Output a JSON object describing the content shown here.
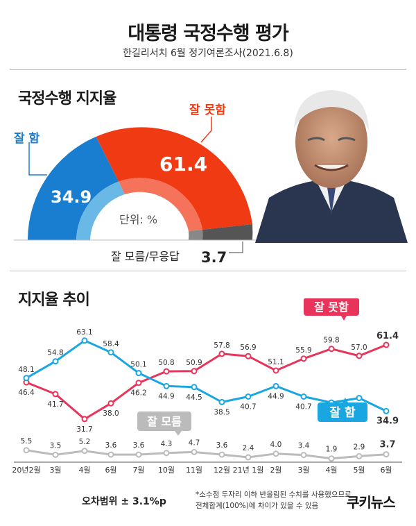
{
  "header": {
    "title": "대통령 국정수행 평가",
    "subtitle": "한길리서치 6월 정기여론조사(2021.6.8)"
  },
  "donut": {
    "section_title": "국정수행 지지율",
    "good_label": "잘 함",
    "good_value": "34.9",
    "bad_label": "잘 못함",
    "bad_value": "61.4",
    "unknown_label": "잘 모름/무응답",
    "unknown_value": "3.7",
    "unit_label": "단위: %",
    "colors": {
      "good": "#1a7ed0",
      "good_inner": "#6ab8e6",
      "bad": "#f03a14",
      "bad_inner": "#f5735a",
      "unknown": "#555555"
    }
  },
  "trend": {
    "section_title": "지지율 추이",
    "bad_tag": "잘 못함",
    "good_tag": "잘 함",
    "unknown_tag": "잘 모름",
    "colors": {
      "bad": "#e8335a",
      "good": "#1aa6e0",
      "unknown": "#bbbbbb"
    }
  },
  "chart_data": {
    "type": "line",
    "x": [
      "20년2월",
      "3월",
      "4월",
      "6월",
      "7월",
      "10월",
      "11월",
      "12월",
      "21년 1월",
      "2월",
      "3월",
      "4월",
      "5월",
      "6월"
    ],
    "series": [
      {
        "name": "잘 못함",
        "values": [
          46.4,
          41.7,
          31.7,
          38.0,
          46.2,
          50.8,
          50.9,
          57.8,
          56.9,
          51.1,
          55.9,
          59.8,
          57.0,
          61.4
        ]
      },
      {
        "name": "잘 함",
        "values": [
          48.1,
          54.8,
          63.1,
          58.4,
          50.1,
          44.9,
          44.5,
          38.5,
          40.7,
          44.9,
          40.7,
          38.3,
          40.1,
          34.9
        ]
      },
      {
        "name": "잘 모름",
        "values": [
          5.5,
          3.5,
          5.2,
          3.6,
          3.6,
          4.3,
          4.7,
          3.6,
          2.4,
          4.0,
          3.4,
          1.9,
          2.9,
          3.7
        ]
      }
    ],
    "labels": {
      "bad": [
        "46.4",
        "41.7",
        "31.7",
        "38.0",
        "46.2",
        "50.8",
        "50.9",
        "57.8",
        "56.9",
        "51.1",
        "55.9",
        "59.8",
        "57.0",
        "61.4"
      ],
      "good": [
        "48.1",
        "54.8",
        "63.1",
        "58.4",
        "50.1",
        "44.9",
        "44.5",
        "38.5",
        "40.7",
        "44.9",
        "40.7",
        "38.3",
        "40.1",
        "34.9"
      ],
      "unknown": [
        "5.5",
        "3.5",
        "5.2",
        "3.6",
        "3.6",
        "4.3",
        "4.7",
        "3.6",
        "2.4",
        "4.0",
        "3.4",
        "1.9",
        "2.9",
        "3.7"
      ]
    }
  },
  "footer": {
    "margin_of_error": "오차범위 ± 3.1%p",
    "note_line1": "*소수점 두자리 이하 반올림된 수치를 사용했으므로",
    "note_line2": "전체합계(100%)에 차이가 있을 수 있음",
    "logo": "쿠키뉴스"
  }
}
